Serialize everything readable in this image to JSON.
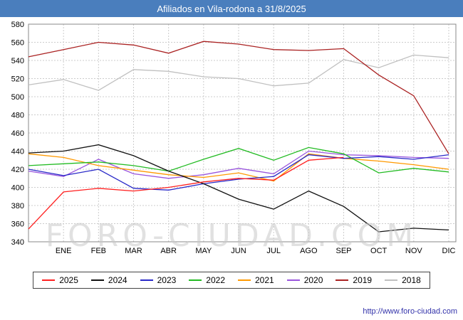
{
  "header": {
    "title": "Afiliados en Vila-rodona a 31/8/2025",
    "bg_color": "#4a7ebd"
  },
  "watermark": {
    "text": "FORO-CIUDAD.COM"
  },
  "footer": {
    "url_text": "http://www.foro-ciudad.com"
  },
  "chart_data": {
    "type": "line",
    "title": "Afiliados en Vila-rodona a 31/8/2025",
    "x_categories": [
      "ENE",
      "FEB",
      "MAR",
      "ABR",
      "MAY",
      "JUN",
      "JUL",
      "AGO",
      "SEP",
      "OCT",
      "NOV",
      "DIC"
    ],
    "ylim": [
      340,
      580
    ],
    "ytick_step": 20,
    "grid": true,
    "legend_position": "bottom",
    "layout_note": "Each series has 13 values: the first is plotted at the left axis edge (previous December), followed by the 12 monthly values at the gridlines.",
    "series": [
      {
        "name": "2025",
        "color": "#ff2020",
        "values": [
          354,
          395,
          399,
          396,
          400,
          406,
          410,
          408,
          430,
          433,
          null,
          null,
          null
        ]
      },
      {
        "name": "2024",
        "color": "#111111",
        "values": [
          438,
          440,
          447,
          435,
          418,
          404,
          387,
          376,
          396,
          379,
          351,
          355,
          353
        ]
      },
      {
        "name": "2023",
        "color": "#2929c8",
        "values": [
          420,
          413,
          420,
          399,
          397,
          404,
          409,
          412,
          436,
          432,
          434,
          431,
          436
        ]
      },
      {
        "name": "2022",
        "color": "#22bb22",
        "values": [
          424,
          426,
          428,
          424,
          418,
          431,
          443,
          430,
          444,
          437,
          416,
          421,
          417
        ]
      },
      {
        "name": "2021",
        "color": "#ff9900",
        "values": [
          437,
          433,
          424,
          419,
          414,
          411,
          416,
          407,
          437,
          432,
          429,
          425,
          420
        ]
      },
      {
        "name": "2020",
        "color": "#9955dd",
        "values": [
          418,
          412,
          431,
          415,
          410,
          414,
          421,
          415,
          440,
          436,
          435,
          433,
          432
        ]
      },
      {
        "name": "2019",
        "color": "#aa2222",
        "values": [
          544,
          552,
          560,
          557,
          548,
          561,
          558,
          552,
          551,
          553,
          524,
          501,
          437
        ]
      },
      {
        "name": "2018",
        "color": "#c0c0c0",
        "values": [
          513,
          519,
          507,
          530,
          528,
          522,
          520,
          512,
          515,
          541,
          532,
          546,
          543
        ]
      }
    ]
  }
}
